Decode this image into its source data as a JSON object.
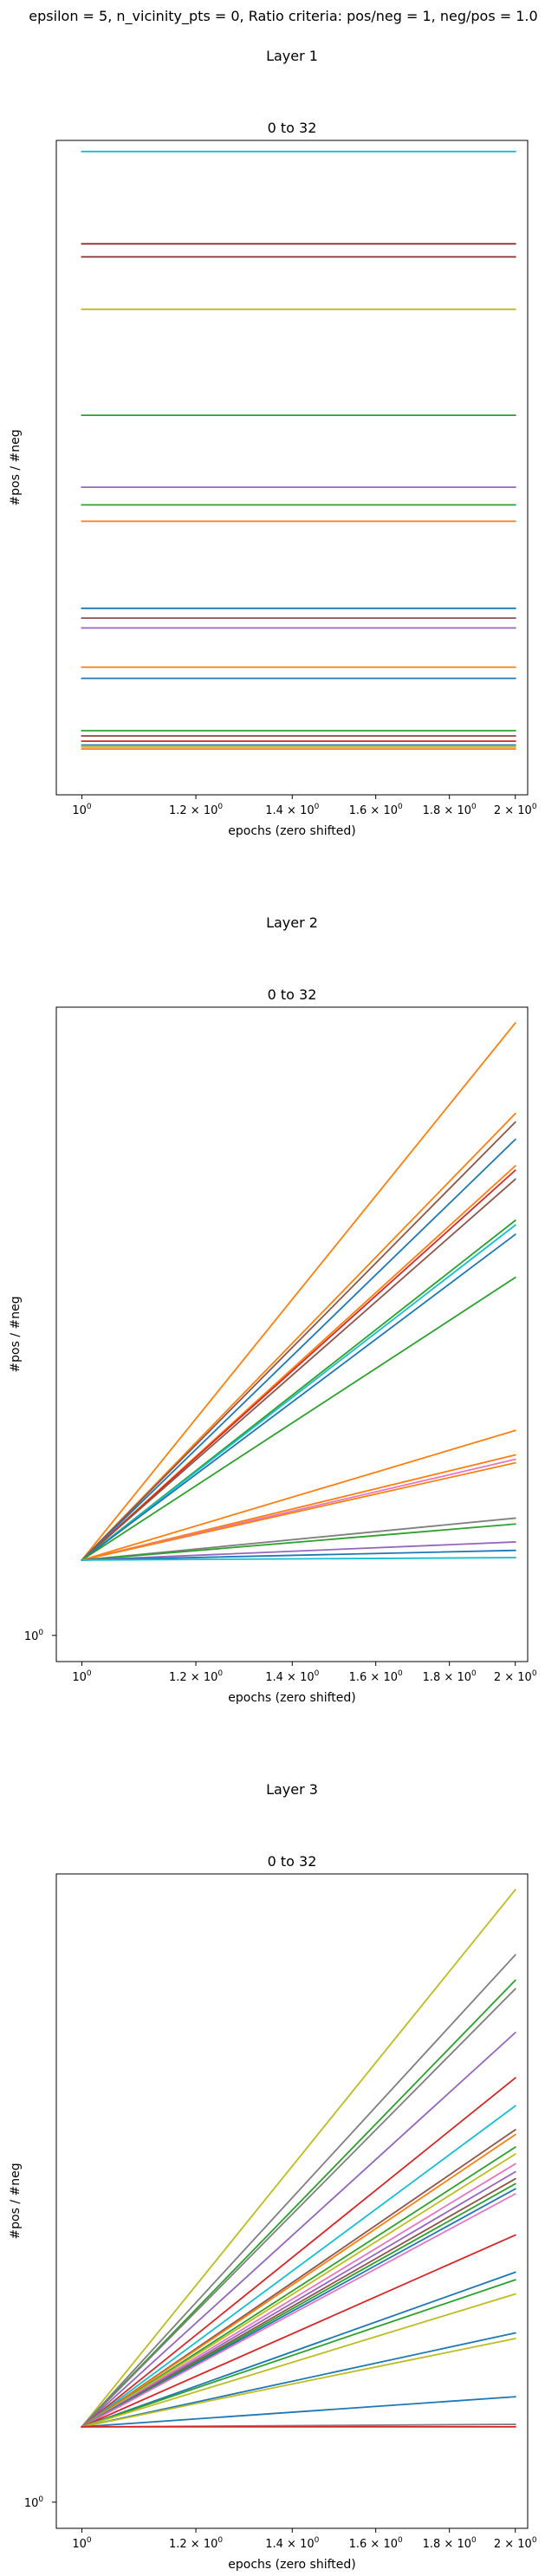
{
  "suptitle": "epsilon = 5, n_vicinity_pts = 0, Ratio criteria: pos/neg = 1, neg/pos = 1.0",
  "chart_data": [
    {
      "type": "line",
      "layer_title": "Layer 1",
      "title": "0 to 32",
      "xlabel": "epochs (zero shifted)",
      "ylabel": "#pos / #neg",
      "x_scale": "log",
      "y_scale": "log",
      "xlim": [
        0.96,
        2.04
      ],
      "ylim": [
        0,
        1
      ],
      "x": [
        1,
        2
      ],
      "x_ticks": [
        {
          "value": 1.0,
          "base": "10",
          "exp": "0"
        },
        {
          "value": 1.2,
          "base": "1.2 × 10",
          "exp": "0"
        },
        {
          "value": 1.4,
          "base": "1.4 × 10",
          "exp": "0"
        },
        {
          "value": 1.6,
          "base": "1.6 × 10",
          "exp": "0"
        },
        {
          "value": 1.8,
          "base": "1.8 × 10",
          "exp": "0"
        },
        {
          "value": 2.0,
          "base": "2 × 10",
          "exp": "0"
        }
      ],
      "y_ticks": [],
      "series": [
        {
          "color": "#17becf",
          "values": [
            0.983,
            0.983
          ]
        },
        {
          "color": "#8c2d2d",
          "values": [
            0.842,
            0.842
          ]
        },
        {
          "color": "#8c2d2d",
          "values": [
            0.822,
            0.822
          ]
        },
        {
          "color": "#bcbd22",
          "values": [
            0.742,
            0.742
          ]
        },
        {
          "color": "#2ca02c",
          "values": [
            0.58,
            0.58
          ]
        },
        {
          "color": "#9467bd",
          "values": [
            0.47,
            0.47
          ]
        },
        {
          "color": "#2ca02c",
          "values": [
            0.443,
            0.443
          ]
        },
        {
          "color": "#ff7f0e",
          "values": [
            0.418,
            0.418
          ]
        },
        {
          "color": "#1f77b4",
          "values": [
            0.285,
            0.285
          ]
        },
        {
          "color": "#8c564b",
          "values": [
            0.27,
            0.27
          ]
        },
        {
          "color": "#9467bd",
          "values": [
            0.255,
            0.255
          ]
        },
        {
          "color": "#ff7f0e",
          "values": [
            0.195,
            0.195
          ]
        },
        {
          "color": "#1f77b4",
          "values": [
            0.178,
            0.178
          ]
        },
        {
          "color": "#2ca02c",
          "values": [
            0.098,
            0.098
          ]
        },
        {
          "color": "#8c564b",
          "values": [
            0.09,
            0.09
          ]
        },
        {
          "color": "#d62728",
          "values": [
            0.082,
            0.082
          ]
        },
        {
          "color": "#1f77b4",
          "values": [
            0.076,
            0.076
          ]
        },
        {
          "color": "#bcbd22",
          "values": [
            0.073,
            0.073
          ]
        },
        {
          "color": "#ff7f0e",
          "values": [
            0.07,
            0.07
          ]
        }
      ]
    },
    {
      "type": "line",
      "layer_title": "Layer 2",
      "title": "0 to 32",
      "xlabel": "epochs (zero shifted)",
      "ylabel": "#pos / #neg",
      "x_scale": "log",
      "y_scale": "log",
      "xlim": [
        0.96,
        2.04
      ],
      "ylim": [
        0.95,
        1.6
      ],
      "x": [
        1,
        2
      ],
      "x_ticks": [
        {
          "value": 1.0,
          "base": "10",
          "exp": "0"
        },
        {
          "value": 1.2,
          "base": "1.2 × 10",
          "exp": "0"
        },
        {
          "value": 1.4,
          "base": "1.4 × 10",
          "exp": "0"
        },
        {
          "value": 1.6,
          "base": "1.6 × 10",
          "exp": "0"
        },
        {
          "value": 1.8,
          "base": "1.8 × 10",
          "exp": "0"
        },
        {
          "value": 2.0,
          "base": "2 × 10",
          "exp": "0"
        }
      ],
      "y_ticks": [
        {
          "value": 0.97,
          "base": "10",
          "exp": "0"
        }
      ],
      "series": [
        {
          "color": "#ff7f0e",
          "values": [
            1.03,
            1.58
          ]
        },
        {
          "color": "#ff7f0e",
          "values": [
            1.03,
            1.47
          ]
        },
        {
          "color": "#8c564b",
          "values": [
            1.03,
            1.46
          ]
        },
        {
          "color": "#1f77b4",
          "values": [
            1.03,
            1.44
          ]
        },
        {
          "color": "#ff7f0e",
          "values": [
            1.03,
            1.41
          ]
        },
        {
          "color": "#d62728",
          "values": [
            1.03,
            1.405
          ]
        },
        {
          "color": "#8c564b",
          "values": [
            1.03,
            1.395
          ]
        },
        {
          "color": "#2ca02c",
          "values": [
            1.03,
            1.35
          ]
        },
        {
          "color": "#17becf",
          "values": [
            1.03,
            1.345
          ]
        },
        {
          "color": "#1f77b4",
          "values": [
            1.03,
            1.335
          ]
        },
        {
          "color": "#2ca02c",
          "values": [
            1.03,
            1.29
          ]
        },
        {
          "color": "#ff7f0e",
          "values": [
            1.03,
            1.142
          ]
        },
        {
          "color": "#ff7f0e",
          "values": [
            1.03,
            1.12
          ]
        },
        {
          "color": "#e377c2",
          "values": [
            1.03,
            1.116
          ]
        },
        {
          "color": "#ff7f0e",
          "values": [
            1.03,
            1.113
          ]
        },
        {
          "color": "#7f7f7f",
          "values": [
            1.03,
            1.065
          ]
        },
        {
          "color": "#2ca02c",
          "values": [
            1.03,
            1.06
          ]
        },
        {
          "color": "#9467bd",
          "values": [
            1.03,
            1.045
          ]
        },
        {
          "color": "#1f77b4",
          "values": [
            1.03,
            1.038
          ]
        },
        {
          "color": "#17becf",
          "values": [
            1.03,
            1.032
          ]
        }
      ]
    },
    {
      "type": "line",
      "layer_title": "Layer 3",
      "title": "0 to 32",
      "xlabel": "epochs (zero shifted)",
      "ylabel": "#pos / #neg",
      "x_scale": "log",
      "y_scale": "log",
      "xlim": [
        0.96,
        2.04
      ],
      "ylim": [
        0.95,
        1.6
      ],
      "x": [
        1,
        2
      ],
      "x_ticks": [
        {
          "value": 1.0,
          "base": "10",
          "exp": "0"
        },
        {
          "value": 1.2,
          "base": "1.2 × 10",
          "exp": "0"
        },
        {
          "value": 1.4,
          "base": "1.4 × 10",
          "exp": "0"
        },
        {
          "value": 1.6,
          "base": "1.6 × 10",
          "exp": "0"
        },
        {
          "value": 1.8,
          "base": "1.8 × 10",
          "exp": "0"
        },
        {
          "value": 2.0,
          "base": "2 × 10",
          "exp": "0"
        }
      ],
      "y_ticks": [
        {
          "value": 0.97,
          "base": "10",
          "exp": "0"
        }
      ],
      "series": [
        {
          "color": "#bcbd22",
          "values": [
            1.03,
            1.58
          ]
        },
        {
          "color": "#7f7f7f",
          "values": [
            1.03,
            1.5
          ]
        },
        {
          "color": "#2ca02c",
          "values": [
            1.03,
            1.47
          ]
        },
        {
          "color": "#7f7f7f",
          "values": [
            1.03,
            1.46
          ]
        },
        {
          "color": "#9467bd",
          "values": [
            1.03,
            1.41
          ]
        },
        {
          "color": "#d62728",
          "values": [
            1.03,
            1.36
          ]
        },
        {
          "color": "#17becf",
          "values": [
            1.03,
            1.33
          ]
        },
        {
          "color": "#8c564b",
          "values": [
            1.03,
            1.305
          ]
        },
        {
          "color": "#ff7f0e",
          "values": [
            1.03,
            1.3
          ]
        },
        {
          "color": "#2ca02c",
          "values": [
            1.03,
            1.287
          ]
        },
        {
          "color": "#bcbd22",
          "values": [
            1.03,
            1.28
          ]
        },
        {
          "color": "#e377c2",
          "values": [
            1.03,
            1.27
          ]
        },
        {
          "color": "#9467bd",
          "values": [
            1.03,
            1.262
          ]
        },
        {
          "color": "#8c564b",
          "values": [
            1.03,
            1.255
          ]
        },
        {
          "color": "#2ca02c",
          "values": [
            1.03,
            1.25
          ]
        },
        {
          "color": "#1f77b4",
          "values": [
            1.03,
            1.245
          ]
        },
        {
          "color": "#e377c2",
          "values": [
            1.03,
            1.24
          ]
        },
        {
          "color": "#d62728",
          "values": [
            1.03,
            1.2
          ]
        },
        {
          "color": "#1f77b4",
          "values": [
            1.03,
            1.165
          ]
        },
        {
          "color": "#2ca02c",
          "values": [
            1.03,
            1.158
          ]
        },
        {
          "color": "#bcbd22",
          "values": [
            1.03,
            1.145
          ]
        },
        {
          "color": "#1f77b4",
          "values": [
            1.03,
            1.11
          ]
        },
        {
          "color": "#bcbd22",
          "values": [
            1.03,
            1.105
          ]
        },
        {
          "color": "#1f77b4",
          "values": [
            1.03,
            1.055
          ]
        },
        {
          "color": "#7f7f7f",
          "values": [
            1.03,
            1.032
          ]
        },
        {
          "color": "#d62728",
          "values": [
            1.03,
            1.03
          ]
        }
      ]
    }
  ]
}
